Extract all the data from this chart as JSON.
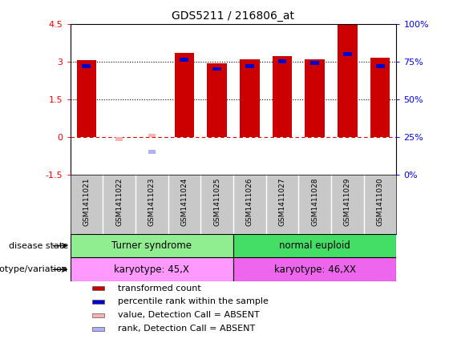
{
  "title": "GDS5211 / 216806_at",
  "samples": [
    "GSM1411021",
    "GSM1411022",
    "GSM1411023",
    "GSM1411024",
    "GSM1411025",
    "GSM1411026",
    "GSM1411027",
    "GSM1411028",
    "GSM1411029",
    "GSM1411030"
  ],
  "transformed_count": [
    3.05,
    null,
    null,
    3.35,
    2.93,
    3.1,
    3.22,
    3.1,
    4.45,
    3.15
  ],
  "absent_value": [
    null,
    -0.18,
    0.12,
    null,
    null,
    null,
    null,
    null,
    null,
    null
  ],
  "percentile_rank": [
    72,
    null,
    null,
    76,
    70,
    72,
    75,
    74,
    80,
    72
  ],
  "absent_rank": [
    null,
    null,
    15,
    null,
    null,
    null,
    null,
    null,
    null,
    null
  ],
  "ylim_left": [
    -1.5,
    4.5
  ],
  "ylim_right": [
    0,
    100
  ],
  "yticks_left": [
    -1.5,
    0,
    1.5,
    3.0,
    4.5
  ],
  "yticks_right": [
    0,
    25,
    50,
    75,
    100
  ],
  "ytick_labels_left": [
    "-1.5",
    "0",
    "1.5",
    "3",
    "4.5"
  ],
  "ytick_labels_right": [
    "0%",
    "25%",
    "50%",
    "75%",
    "100%"
  ],
  "hlines": [
    1.5,
    3.0
  ],
  "bar_width": 0.6,
  "bar_color_red": "#CC0000",
  "bar_color_blue": "#0000CC",
  "bar_color_absent_red": "#FFB0B0",
  "bar_color_absent_blue": "#B0B0FF",
  "dashed_line_color": "#CC0000",
  "disease_groups": [
    {
      "label": "Turner syndrome",
      "color": "#90EE90",
      "start": 0,
      "end": 5
    },
    {
      "label": "normal euploid",
      "color": "#44DD66",
      "start": 5,
      "end": 10
    }
  ],
  "genotype_groups": [
    {
      "label": "karyotype: 45,X",
      "color": "#FF99FF",
      "start": 0,
      "end": 5
    },
    {
      "label": "karyotype: 46,XX",
      "color": "#EE66EE",
      "start": 5,
      "end": 10
    }
  ],
  "legend_items": [
    {
      "label": "transformed count",
      "color": "#CC0000"
    },
    {
      "label": "percentile rank within the sample",
      "color": "#0000CC"
    },
    {
      "label": "value, Detection Call = ABSENT",
      "color": "#FFB0B0"
    },
    {
      "label": "rank, Detection Call = ABSENT",
      "color": "#B0B0FF"
    }
  ],
  "label_disease_state": "disease state",
  "label_genotype": "genotype/variation",
  "bg_color": "#C8C8C8"
}
